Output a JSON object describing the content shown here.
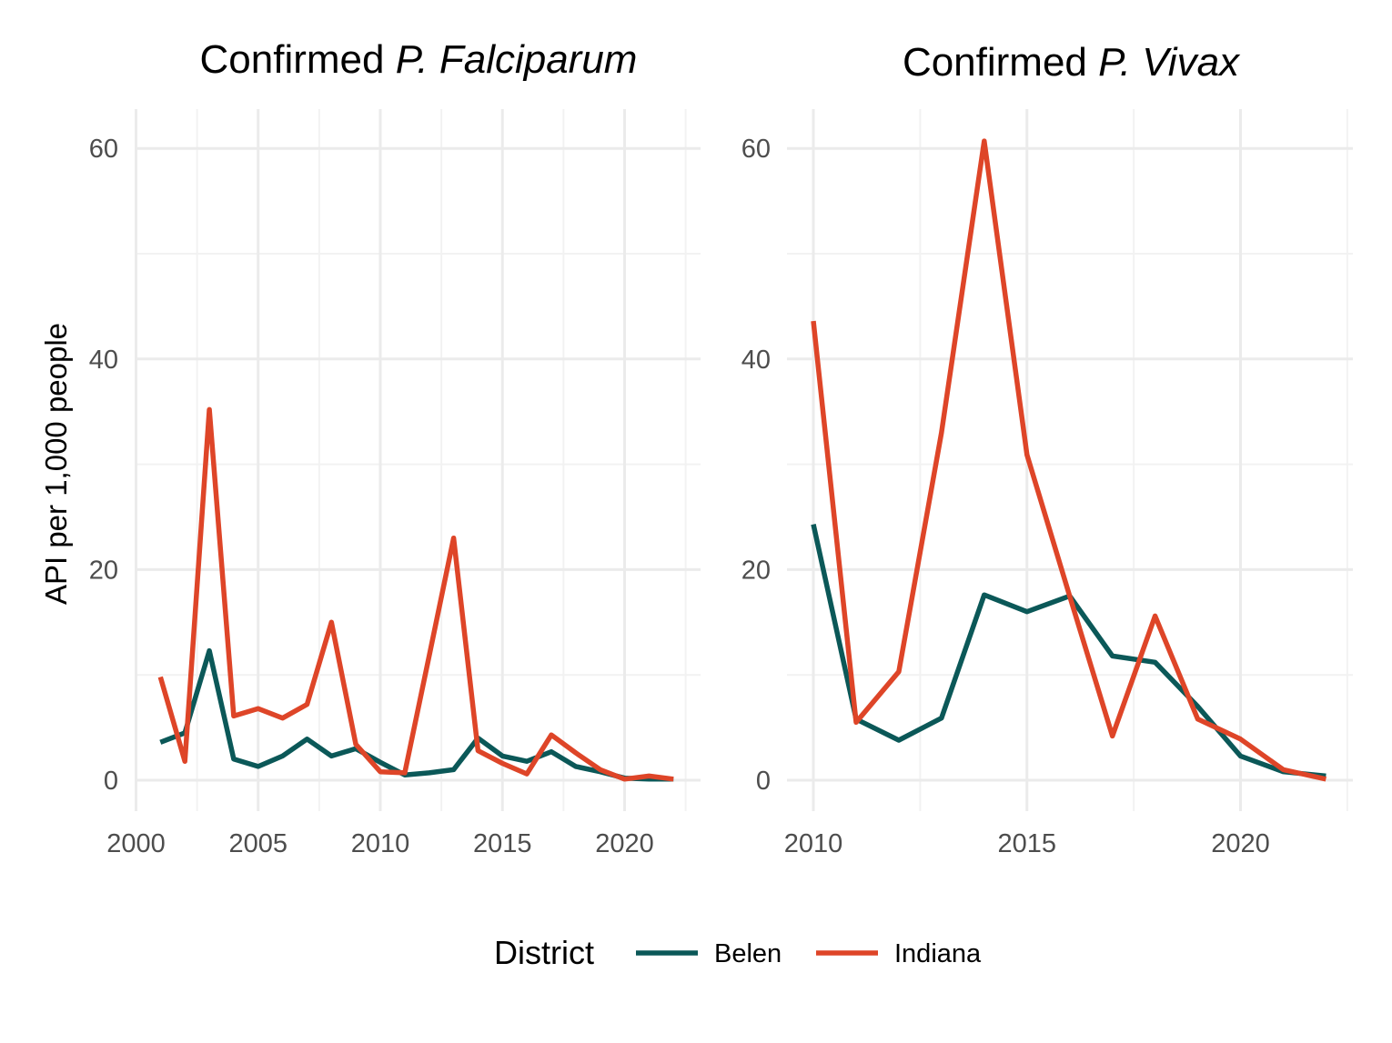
{
  "chart_data": [
    {
      "type": "line",
      "title": "Confirmed ",
      "title_italic": "P. Falciparum",
      "xlabel": "",
      "ylabel": "API per 1,000 people",
      "xlim": [
        2001,
        2022
      ],
      "ylim": [
        0,
        60
      ],
      "x_ticks": [
        2000,
        2005,
        2010,
        2015,
        2020
      ],
      "y_ticks": [
        0,
        20,
        40,
        60
      ],
      "grid": true,
      "x": [
        2001,
        2002,
        2003,
        2004,
        2005,
        2006,
        2007,
        2008,
        2009,
        2010,
        2011,
        2012,
        2013,
        2014,
        2015,
        2016,
        2017,
        2018,
        2019,
        2020,
        2021,
        2022
      ],
      "series": [
        {
          "name": "Belen",
          "color": "#0b5858",
          "values": [
            3.6,
            4.5,
            12.3,
            2.0,
            1.3,
            2.3,
            3.9,
            2.3,
            3.0,
            1.7,
            0.5,
            0.7,
            1.0,
            4.0,
            2.3,
            1.8,
            2.7,
            1.3,
            0.8,
            0.2,
            0.1,
            0.1
          ]
        },
        {
          "name": "Indiana",
          "color": "#de4528",
          "values": [
            9.8,
            1.8,
            35.2,
            6.1,
            6.8,
            5.9,
            7.2,
            15.0,
            3.4,
            0.8,
            0.7,
            11.8,
            23.0,
            2.8,
            1.6,
            0.6,
            4.3,
            2.6,
            1.0,
            0.1,
            0.4,
            0.1
          ]
        }
      ]
    },
    {
      "type": "line",
      "title": "Confirmed ",
      "title_italic": "P. Vivax",
      "xlabel": "",
      "ylabel": "",
      "xlim": [
        2010,
        2022
      ],
      "ylim": [
        0,
        60
      ],
      "x_ticks": [
        2010,
        2015,
        2020
      ],
      "y_ticks": [
        0,
        20,
        40,
        60
      ],
      "grid": true,
      "x": [
        2010,
        2011,
        2012,
        2013,
        2014,
        2015,
        2016,
        2017,
        2018,
        2019,
        2020,
        2021,
        2022
      ],
      "series": [
        {
          "name": "Belen",
          "color": "#0b5858",
          "values": [
            24.3,
            5.8,
            3.8,
            5.9,
            17.6,
            16.0,
            17.5,
            11.8,
            11.2,
            7.0,
            2.3,
            0.8,
            0.4
          ]
        },
        {
          "name": "Indiana",
          "color": "#de4528",
          "values": [
            43.6,
            5.5,
            10.3,
            33.0,
            60.7,
            30.9,
            17.5,
            4.2,
            15.6,
            5.8,
            3.9,
            1.0,
            0.1
          ]
        }
      ]
    }
  ],
  "legend": {
    "title": "District",
    "position": "bottom",
    "items": [
      {
        "label": "Belen",
        "color": "#0b5858"
      },
      {
        "label": "Indiana",
        "color": "#de4528"
      }
    ]
  }
}
